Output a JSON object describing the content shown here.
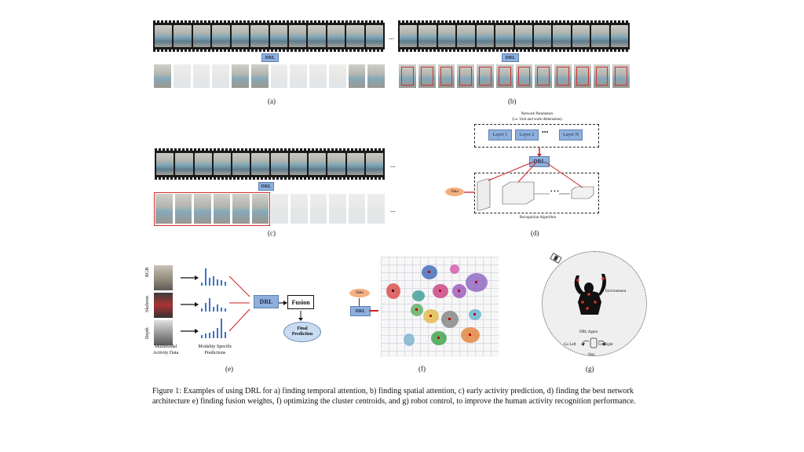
{
  "panels": {
    "a": {
      "label": "(a)",
      "drl": "DRL",
      "ellipsis": "..."
    },
    "b": {
      "label": "(b)",
      "drl": "DRL",
      "ellipsis": "..."
    },
    "c": {
      "label": "(c)",
      "drl": "DRL",
      "ellipsis_top": "...",
      "ellipsis_bottom": "..."
    },
    "d": {
      "label": "(d)",
      "title_line1": "Network Parameters",
      "title_line2": "(i.e. Unit and scale dimensions)",
      "layers": [
        "Layer 1",
        "Layer 2",
        "Layer N"
      ],
      "layers_ellipsis": "•••",
      "drl": "DRL",
      "data": "Data",
      "algo_ellipsis": "• • •",
      "bottom_label": "Recognition Algorithm"
    },
    "e": {
      "label": "(e)",
      "modalities": [
        "RGB",
        "Skeleton",
        "Depth"
      ],
      "drl": "DRL",
      "fusion": "Fusion",
      "final_line1": "Final",
      "final_line2": "Prediction",
      "left_caption_line1": "Multimodal",
      "left_caption_line2": "Activity Data",
      "mid_caption_line1": "Modality Specific",
      "mid_caption_line2": "Predictions"
    },
    "f": {
      "label": "(f)",
      "data": "Data",
      "drl": "DRL"
    },
    "g": {
      "label": "(g)",
      "environment": "Environment",
      "agent": "DRL Agent",
      "go_left": "Go Left",
      "go_right": "Go Right",
      "stay": "Stay"
    }
  },
  "caption": "Figure 1: Examples of using DRL for a) finding temporal attention, b) finding spatial attention, c) early activity prediction, d) finding the best network architecture e) finding fusion weights, f) optimizing the cluster centroids, and g) robot control, to improve the human activity recognition performance.",
  "colors": {
    "drl_box": "#8fb0dc",
    "arrow": "#cc2222",
    "data_oval": "#f4b183",
    "final_oval": "#c9dcf2"
  }
}
